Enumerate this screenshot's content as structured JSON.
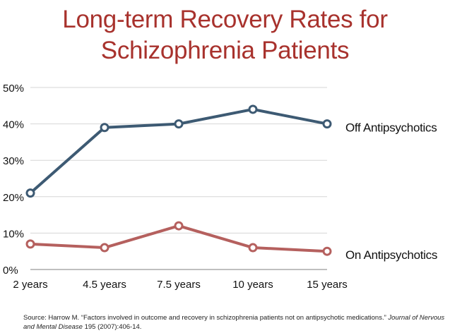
{
  "chart_data": {
    "type": "line",
    "title_line1": "Long-term Recovery Rates for",
    "title_line2": "Schizophrenia Patients",
    "categories": [
      "2 years",
      "4.5 years",
      "7.5 years",
      "10 years",
      "15 years"
    ],
    "y_ticks": [
      "0%",
      "10%",
      "20%",
      "30%",
      "40%",
      "50%"
    ],
    "ylim": [
      0,
      50
    ],
    "grid": true,
    "series": [
      {
        "name": "Off Antipsychotics",
        "values": [
          21,
          39,
          40,
          44,
          40
        ],
        "color": "#3d5a73"
      },
      {
        "name": "On Antipsychotics",
        "values": [
          7,
          6,
          12,
          6,
          5
        ],
        "color": "#b5605e"
      }
    ]
  },
  "source": {
    "prefix": "Source: Harrow M. “Factors involved in outcome and recovery in schizophrenia patients not on antipsychotic medications.” ",
    "journal": "Journal of Nervous and Mental Disease",
    "suffix": " 195 (2007):406-14."
  }
}
